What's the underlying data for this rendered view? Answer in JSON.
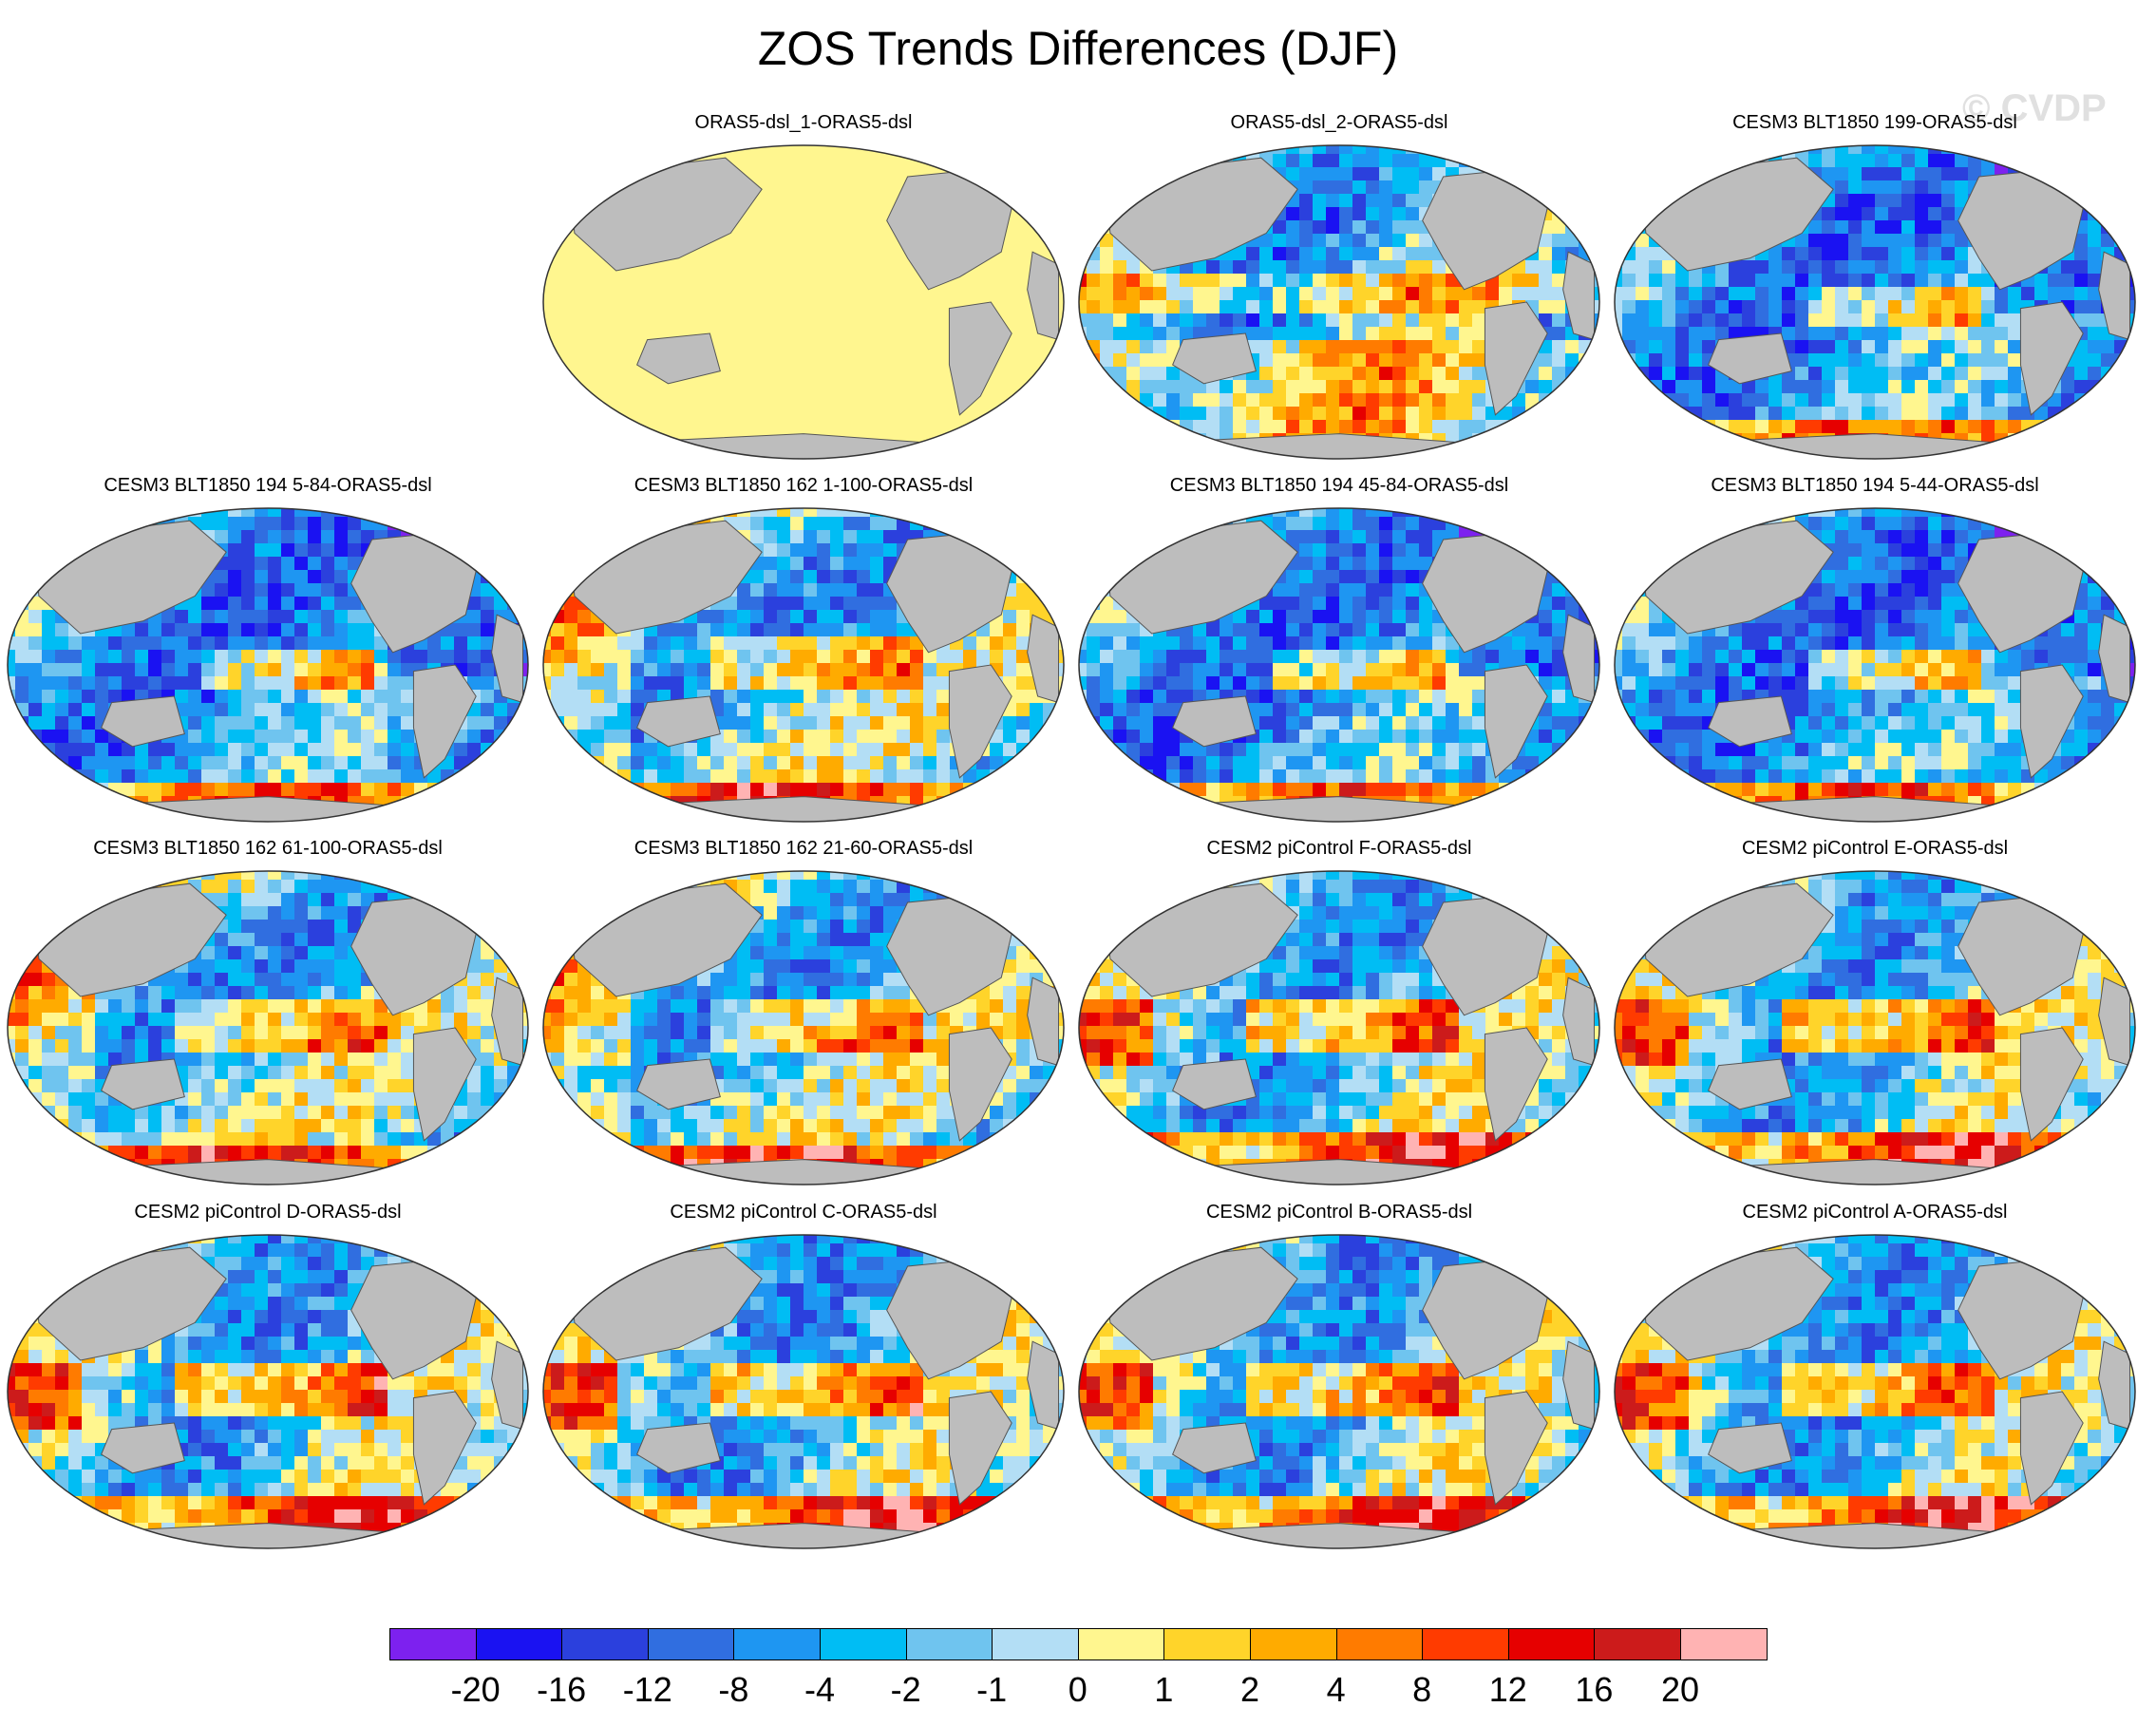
{
  "title": "ZOS Trends Differences (DJF)",
  "watermark": "© CVDP",
  "panels": [
    {
      "title": "ORAS5-dsl_1-ORAS5-dsl",
      "pattern": "uniform"
    },
    {
      "title": "ORAS5-dsl_2-ORAS5-dsl",
      "pattern": "variant2"
    },
    {
      "title": "CESM3 BLT1850 199-ORAS5-dsl",
      "pattern": "cesm3"
    },
    {
      "title": "CESM3 BLT1850 194 5-84-ORAS5-dsl",
      "pattern": "cesm3"
    },
    {
      "title": "CESM3 BLT1850 162 1-100-ORAS5-dsl",
      "pattern": "cesm3b"
    },
    {
      "title": "CESM3 BLT1850 194 45-84-ORAS5-dsl",
      "pattern": "cesm3"
    },
    {
      "title": "CESM3 BLT1850 194 5-44-ORAS5-dsl",
      "pattern": "cesm3"
    },
    {
      "title": "CESM3 BLT1850 162 61-100-ORAS5-dsl",
      "pattern": "cesm3b"
    },
    {
      "title": "CESM3 BLT1850 162 21-60-ORAS5-dsl",
      "pattern": "cesm3b"
    },
    {
      "title": "CESM2 piControl F-ORAS5-dsl",
      "pattern": "cesm2"
    },
    {
      "title": "CESM2 piControl E-ORAS5-dsl",
      "pattern": "cesm2"
    },
    {
      "title": "CESM2 piControl D-ORAS5-dsl",
      "pattern": "cesm2"
    },
    {
      "title": "CESM2 piControl C-ORAS5-dsl",
      "pattern": "cesm2"
    },
    {
      "title": "CESM2 piControl B-ORAS5-dsl",
      "pattern": "cesm2"
    },
    {
      "title": "CESM2 piControl A-ORAS5-dsl",
      "pattern": "cesm2"
    }
  ],
  "colorbar": {
    "colors": [
      "#7d21ef",
      "#1a12f2",
      "#2b40dd",
      "#306ee0",
      "#1e96f2",
      "#00bdf4",
      "#6fc4ef",
      "#b3def5",
      "#fff68f",
      "#ffd42a",
      "#ffab00",
      "#ff7b00",
      "#ff3b00",
      "#e60000",
      "#cc1b1b",
      "#ffb3b3"
    ],
    "labels": [
      "-20",
      "-16",
      "-12",
      "-8",
      "-4",
      "-2",
      "-1",
      "0",
      "1",
      "2",
      "4",
      "8",
      "12",
      "16",
      "20"
    ]
  },
  "colors": {
    "land": "#bdbdbd",
    "uniform_ocean": "#fff68f"
  }
}
